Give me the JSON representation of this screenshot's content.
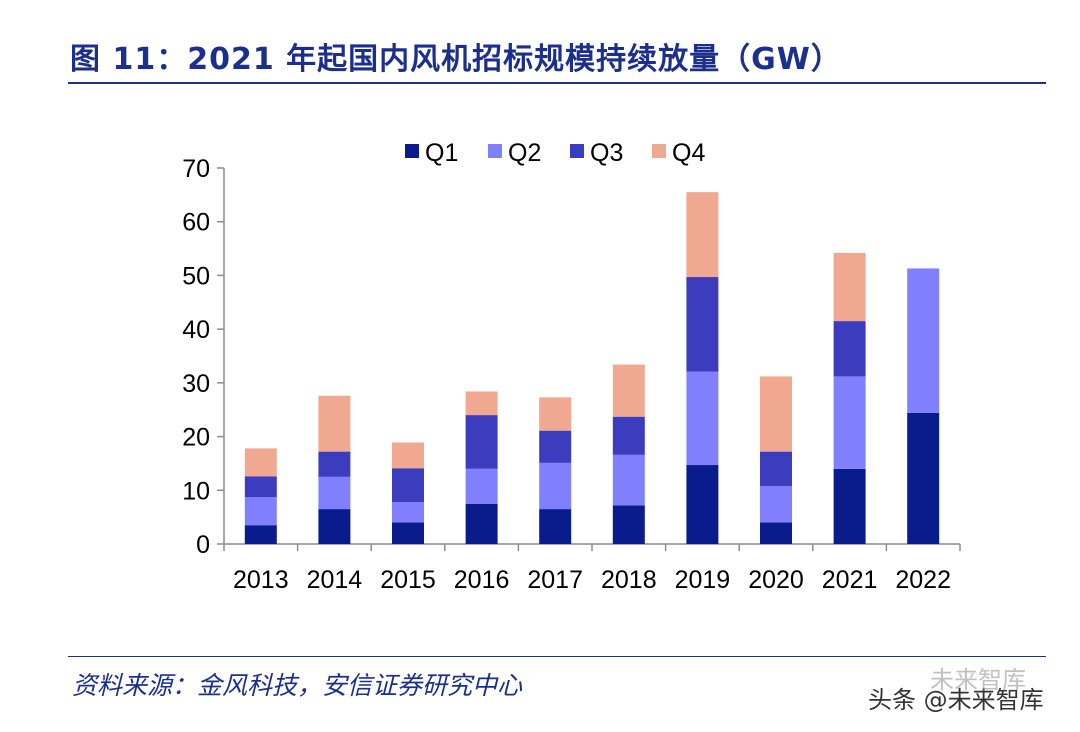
{
  "header": {
    "title": "图 11：2021 年起国内风机招标规模持续放量（GW）"
  },
  "footer": {
    "source": "资料来源：金风科技，安信证券研究中心",
    "watermark_main": "头条 @未来智库",
    "watermark_faded": "未来智库"
  },
  "chart_data": {
    "type": "bar",
    "stacked": true,
    "title": "2021 年起国内风机招标规模持续放量（GW）",
    "xlabel": "",
    "ylabel": "",
    "ylim": [
      0,
      70
    ],
    "yticks": [
      0,
      10,
      20,
      30,
      40,
      50,
      60,
      70
    ],
    "grid": false,
    "legend_position": "top-center",
    "categories": [
      "2013",
      "2014",
      "2015",
      "2016",
      "2017",
      "2018",
      "2019",
      "2020",
      "2021",
      "2022"
    ],
    "series": [
      {
        "name": "Q1",
        "color": "#0a1c8c",
        "values": [
          3.5,
          6.5,
          4.0,
          7.5,
          6.5,
          7.2,
          14.7,
          4.0,
          14.0,
          24.4
        ]
      },
      {
        "name": "Q2",
        "color": "#8080ff",
        "values": [
          5.2,
          6.0,
          3.8,
          6.5,
          8.6,
          9.4,
          17.4,
          6.8,
          17.2,
          26.9
        ]
      },
      {
        "name": "Q3",
        "color": "#3c3cbf",
        "values": [
          3.9,
          4.7,
          6.3,
          10.0,
          6.0,
          7.1,
          17.6,
          6.4,
          10.3,
          0
        ]
      },
      {
        "name": "Q4",
        "color": "#f0a890",
        "values": [
          5.2,
          10.4,
          4.8,
          4.4,
          6.2,
          9.7,
          15.8,
          14.0,
          12.7,
          0
        ]
      }
    ]
  }
}
